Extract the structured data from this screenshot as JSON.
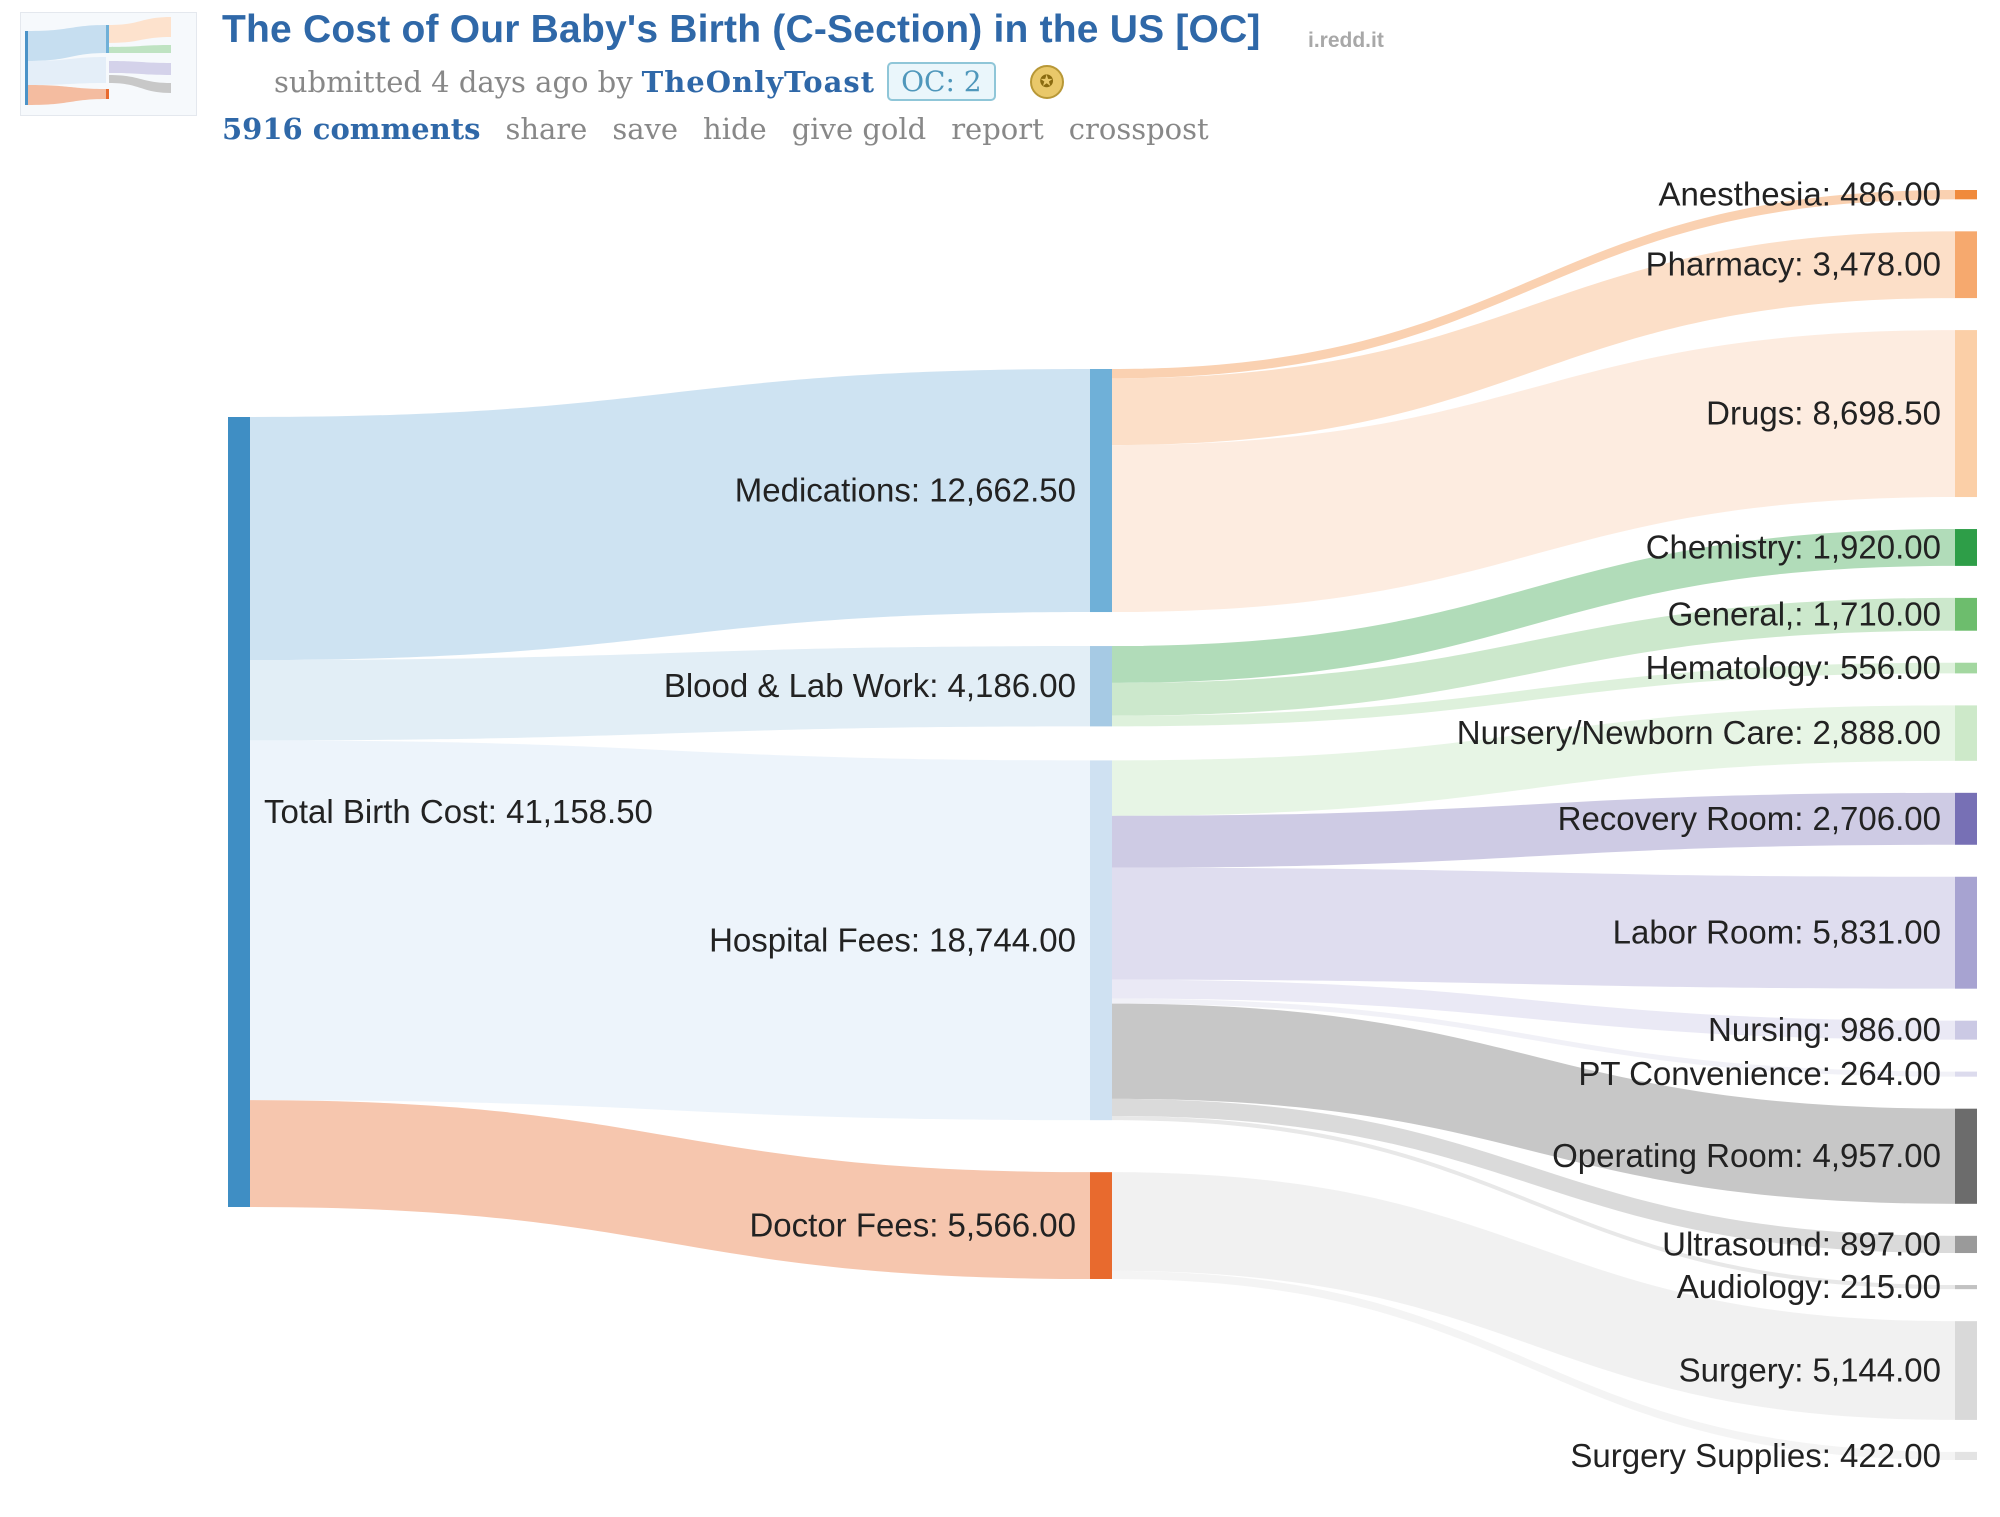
{
  "post": {
    "title": "The Cost of Our Baby's Birth (C-Section) in the US [OC]",
    "domain": "i.redd.it",
    "submitted": "submitted 4 days ago by",
    "author": "TheOnlyToast",
    "flair": "OC: 2",
    "trophy_icon": "trophy-icon",
    "actions": {
      "comments": "5916 comments",
      "share": "share",
      "save": "save",
      "hide": "hide",
      "give_gold": "give gold",
      "report": "report",
      "crosspost": "crosspost"
    }
  },
  "chart_data": {
    "type": "sankey",
    "root": {
      "name": "Total Birth Cost",
      "label": "Total Birth Cost: 41,158.50",
      "value": 41158.5,
      "color": "#3f8ec4"
    },
    "categories": [
      {
        "name": "Medications",
        "label": "Medications: 12,662.50",
        "value": 12662.5,
        "node_color": "#6fb0d8",
        "flow_color": "#c6def0"
      },
      {
        "name": "Blood & Lab Work",
        "label": "Blood & Lab Work: 4,186.00",
        "value": 4186.0,
        "node_color": "#a6cae4",
        "flow_color": "#ddebf5"
      },
      {
        "name": "Hospital Fees",
        "label": "Hospital Fees: 18,744.00",
        "value": 18744.0,
        "node_color": "#cfe1f2",
        "flow_color": "#eaf2fa"
      },
      {
        "name": "Doctor Fees",
        "label": "Doctor Fees: 5,566.00",
        "value": 5566.0,
        "node_color": "#e86a2e",
        "flow_color": "#f4bca0"
      }
    ],
    "items": [
      {
        "name": "Anesthesia",
        "label": "Anesthesia: 486.00",
        "value": 486.0,
        "parent": "Medications",
        "node_color": "#f08a3c",
        "flow_color": "#f9c9a3"
      },
      {
        "name": "Pharmacy",
        "label": "Pharmacy: 3,478.00",
        "value": 3478.0,
        "parent": "Medications",
        "node_color": "#f6a96e",
        "flow_color": "#fbd9be"
      },
      {
        "name": "Drugs",
        "label": "Drugs: 8,698.50",
        "value": 8698.5,
        "parent": "Medications",
        "node_color": "#fbcfa7",
        "flow_color": "#fde9da"
      },
      {
        "name": "Chemistry",
        "label": "Chemistry: 1,920.00",
        "value": 1920.0,
        "parent": "Blood & Lab Work",
        "node_color": "#2e9e48",
        "flow_color": "#a3d6ad"
      },
      {
        "name": "General,",
        "label": "General,: 1,710.00",
        "value": 1710.0,
        "parent": "Blood & Lab Work",
        "node_color": "#6dbd6d",
        "flow_color": "#c3e4c3"
      },
      {
        "name": "Hematology",
        "label": "Hematology: 556.00",
        "value": 556.0,
        "parent": "Blood & Lab Work",
        "node_color": "#a3d7a0",
        "flow_color": "#d8eed6"
      },
      {
        "name": "Nursery/Newborn Care",
        "label": "Nursery/Newborn Care: 2,888.00",
        "value": 2888.0,
        "parent": "Hospital Fees",
        "node_color": "#cde9c9",
        "flow_color": "#e3f3e1"
      },
      {
        "name": "Recovery Room",
        "label": "Recovery Room: 2,706.00",
        "value": 2706.0,
        "parent": "Hospital Fees",
        "node_color": "#7770b5",
        "flow_color": "#c5c2df"
      },
      {
        "name": "Labor Room",
        "label": "Labor Room: 5,831.00",
        "value": 5831.0,
        "parent": "Hospital Fees",
        "node_color": "#a7a3d1",
        "flow_color": "#d9d7ec"
      },
      {
        "name": "Nursing",
        "label": "Nursing: 986.00",
        "value": 986.0,
        "parent": "Hospital Fees",
        "node_color": "#cbc9e4",
        "flow_color": "#e6e5f3"
      },
      {
        "name": "PT Convenience",
        "label": "PT Convenience: 264.00",
        "value": 264.0,
        "parent": "Hospital Fees",
        "node_color": "#dcdbed",
        "flow_color": "#eeeef6"
      },
      {
        "name": "Operating Room",
        "label": "Operating Room: 4,957.00",
        "value": 4957.0,
        "parent": "Hospital Fees",
        "node_color": "#6c6c6c",
        "flow_color": "#bdbdbd"
      },
      {
        "name": "Ultrasound",
        "label": "Ultrasound: 897.00",
        "value": 897.0,
        "parent": "Hospital Fees",
        "node_color": "#9a9a9a",
        "flow_color": "#d4d4d4"
      },
      {
        "name": "Audiology",
        "label": "Audiology: 215.00",
        "value": 215.0,
        "parent": "Hospital Fees",
        "node_color": "#c2c2c2",
        "flow_color": "#e4e4e4"
      },
      {
        "name": "Surgery",
        "label": "Surgery: 5,144.00",
        "value": 5144.0,
        "parent": "Doctor Fees",
        "node_color": "#d9d9d9",
        "flow_color": "#eeeeee"
      },
      {
        "name": "Surgery Supplies",
        "label": "Surgery Supplies: 422.00",
        "value": 422.0,
        "parent": "Doctor Fees",
        "node_color": "#e3e3e3",
        "flow_color": "#f2f2f2"
      }
    ]
  }
}
